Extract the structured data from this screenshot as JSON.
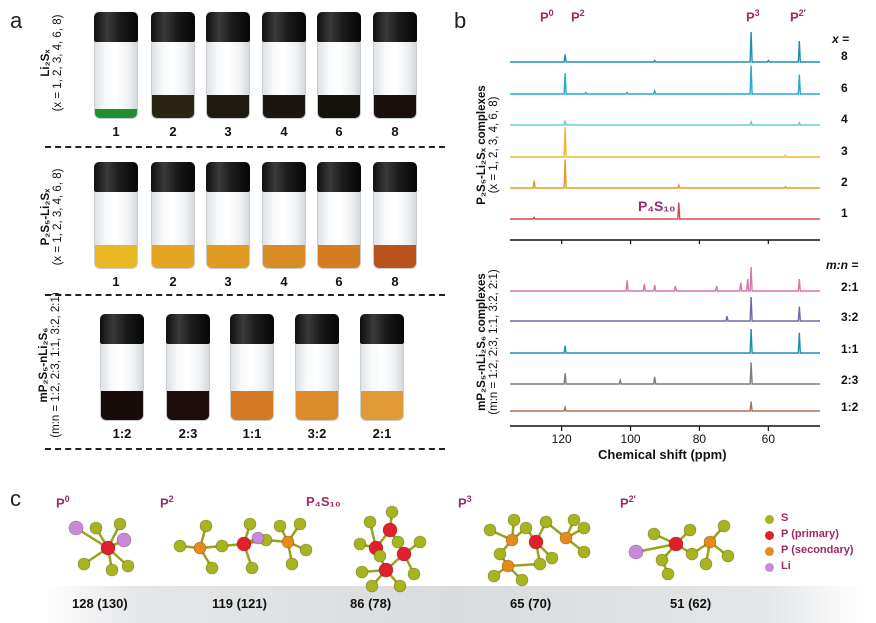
{
  "panel_a": {
    "letter": "a",
    "groups": [
      {
        "side_label_1": "Li₂Sₓ",
        "side_label_2": "(x = 1, 2, 3, 4, 6, 8)",
        "vials": [
          {
            "label": "1",
            "color": "#1f8f2f",
            "level": 0.12
          },
          {
            "label": "2",
            "color": "#2a2410",
            "level": 0.3
          },
          {
            "label": "3",
            "color": "#1e1a10",
            "level": 0.3
          },
          {
            "label": "4",
            "color": "#1b1610",
            "level": 0.3
          },
          {
            "label": "6",
            "color": "#15110d",
            "level": 0.3
          },
          {
            "label": "8",
            "color": "#1a0f0c",
            "level": 0.3
          }
        ]
      },
      {
        "side_label_1": "P₂S₅-Li₂Sₓ",
        "side_label_2": "(x = 1, 2, 3, 4, 6, 8)",
        "vials": [
          {
            "label": "1",
            "color": "#e9b824",
            "level": 0.3
          },
          {
            "label": "2",
            "color": "#e4a622",
            "level": 0.3
          },
          {
            "label": "3",
            "color": "#df9a22",
            "level": 0.3
          },
          {
            "label": "4",
            "color": "#d98c24",
            "level": 0.3
          },
          {
            "label": "6",
            "color": "#d47c22",
            "level": 0.3
          },
          {
            "label": "8",
            "color": "#b9521c",
            "level": 0.3
          }
        ]
      },
      {
        "side_label_1": "mP₂S₅-nLi₂S₆",
        "side_label_2": "(m:n = 1:2, 2:3, 1:1, 3:2, 2:1)",
        "vials": [
          {
            "label": "1:2",
            "color": "#170c0a",
            "level": 0.38
          },
          {
            "label": "2:3",
            "color": "#1d0e0b",
            "level": 0.38
          },
          {
            "label": "1:1",
            "color": "#d47a26",
            "level": 0.38
          },
          {
            "label": "3:2",
            "color": "#db8a2c",
            "level": 0.38
          },
          {
            "label": "2:1",
            "color": "#e09a38",
            "level": 0.38
          }
        ]
      }
    ]
  },
  "panel_b": {
    "letter": "b",
    "peak_labels": [
      {
        "text": "P",
        "sup": "0"
      },
      {
        "text": "P",
        "sup": "2"
      },
      {
        "text": "P",
        "sup": "3"
      },
      {
        "text": "P",
        "sup": "2′"
      }
    ],
    "p4s10_label": "P₄S₁₀",
    "top_side_1": "P₂S₅-Li₂Sₓ complexes",
    "top_side_2": "(x = 1, 2, 3, 4, 6, 8)",
    "bottom_side_1": "mP₂S₅-nLi₂S₆ complexes",
    "bottom_side_2": "(m:n = 1:2, 2:3, 1:1, 3:2, 2:1)",
    "x_header": "x =",
    "mn_header": "m:n =",
    "xlabel": "Chemical shift (ppm)",
    "ticks": [
      "120",
      "100",
      "80",
      "60"
    ]
  },
  "chart_data": {
    "type": "line",
    "xlabel": "Chemical shift (ppm)",
    "xlim": [
      135,
      45
    ],
    "x_reversed": true,
    "x_ticks": [
      120,
      100,
      80,
      60
    ],
    "stacks": [
      {
        "group": "P2S5-Li2Sx complexes",
        "series": [
          {
            "name": "8",
            "color": "#1f8fb0",
            "peaks": [
              [
                119,
                0.25
              ],
              [
                65,
                1.0
              ],
              [
                51,
                0.7
              ],
              [
                93,
                0.05
              ],
              [
                60,
                0.05
              ]
            ]
          },
          {
            "name": "6",
            "color": "#27a9cf",
            "peaks": [
              [
                119,
                0.7
              ],
              [
                65,
                0.95
              ],
              [
                51,
                0.65
              ],
              [
                93,
                0.1
              ],
              [
                101,
                0.05
              ],
              [
                113,
                0.05
              ]
            ]
          },
          {
            "name": "4",
            "color": "#6cc7e2",
            "peaks": [
              [
                119,
                0.15
              ],
              [
                65,
                0.1
              ],
              [
                51,
                0.08
              ]
            ]
          },
          {
            "name": "3",
            "color": "#f2b338",
            "peaks": [
              [
                119,
                1.0
              ],
              [
                55,
                0.05
              ]
            ]
          },
          {
            "name": "2",
            "color": "#e79a2b",
            "peaks": [
              [
                128,
                0.25
              ],
              [
                119,
                0.95
              ],
              [
                86,
                0.1
              ],
              [
                55,
                0.05
              ]
            ]
          },
          {
            "name": "1",
            "color": "#d7464d",
            "peaks": [
              [
                128,
                0.05
              ],
              [
                86,
                0.55
              ]
            ]
          }
        ]
      },
      {
        "group": "mP2S5-nLi2S6 complexes",
        "series": [
          {
            "name": "2:1",
            "color": "#d477aa",
            "peaks": [
              [
                101,
                0.45
              ],
              [
                96,
                0.3
              ],
              [
                93,
                0.25
              ],
              [
                87,
                0.2
              ],
              [
                75,
                0.2
              ],
              [
                68,
                0.35
              ],
              [
                66,
                0.5
              ],
              [
                65,
                1.0
              ],
              [
                51,
                0.5
              ]
            ]
          },
          {
            "name": "3:2",
            "color": "#6e6aa6",
            "peaks": [
              [
                65,
                1.0
              ],
              [
                51,
                0.6
              ],
              [
                72,
                0.2
              ]
            ]
          },
          {
            "name": "1:1",
            "color": "#1f8fb0",
            "peaks": [
              [
                119,
                0.3
              ],
              [
                65,
                1.0
              ],
              [
                51,
                0.85
              ]
            ]
          },
          {
            "name": "2:3",
            "color": "#7d7d7d",
            "peaks": [
              [
                119,
                0.45
              ],
              [
                103,
                0.15
              ],
              [
                93,
                0.3
              ],
              [
                65,
                0.9
              ]
            ]
          },
          {
            "name": "1:2",
            "color": "#a9705a",
            "peaks": [
              [
                119,
                0.15
              ],
              [
                65,
                0.4
              ]
            ]
          }
        ]
      }
    ]
  },
  "panel_c": {
    "letter": "c",
    "structures": [
      {
        "label": "P",
        "sup": "0",
        "sub": "",
        "shift": "128 (130)"
      },
      {
        "label": "P",
        "sup": "2",
        "sub": "",
        "shift": "119 (121)"
      },
      {
        "label": "P₄S₁₀",
        "sup": "",
        "sub": "",
        "shift": "86 (78)"
      },
      {
        "label": "P",
        "sup": "3",
        "sub": "",
        "shift": "65 (70)"
      },
      {
        "label": "P",
        "sup": "2′",
        "sub": "",
        "shift": "51 (62)"
      }
    ],
    "legend": [
      {
        "label": "S",
        "color": "#a8b41e"
      },
      {
        "label": "P (primary)",
        "color": "#e0202a"
      },
      {
        "label": "P (secondary)",
        "color": "#e58a1c"
      },
      {
        "label": "Li",
        "color": "#c88ad8"
      }
    ]
  }
}
